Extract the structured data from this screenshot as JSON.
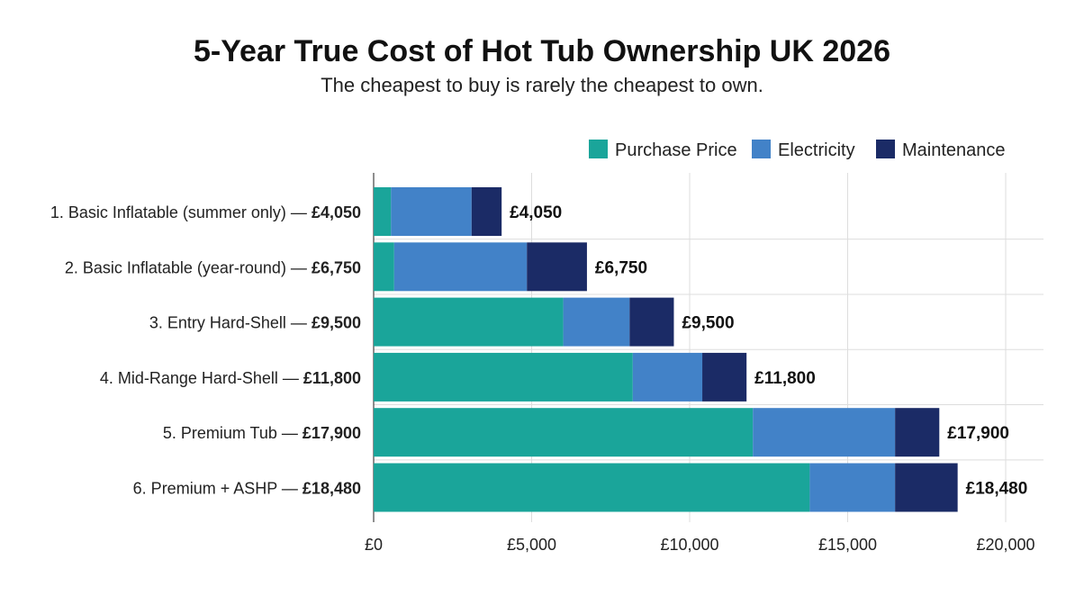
{
  "chart_data": {
    "type": "bar",
    "orientation": "horizontal",
    "stacked": true,
    "title": "5-Year True Cost of Hot Tub Ownership UK 2026",
    "subtitle": "The cheapest to buy is rarely the cheapest to own.",
    "xlabel": "",
    "ylabel": "",
    "xlim": [
      0,
      20000
    ],
    "x_ticks": [
      0,
      5000,
      10000,
      15000,
      20000
    ],
    "x_tick_labels": [
      "£0",
      "£5,000",
      "£10,000",
      "£15,000",
      "£20,000"
    ],
    "grid": true,
    "legend_position": "top-right",
    "categories": [
      {
        "name": "1. Basic Inflatable (summer only) —",
        "total_label": "£4,050"
      },
      {
        "name": "2. Basic Inflatable (year-round) —",
        "total_label": "£6,750"
      },
      {
        "name": "3. Entry Hard-Shell —",
        "total_label": "£9,500"
      },
      {
        "name": "4. Mid-Range Hard-Shell —",
        "total_label": "£11,800"
      },
      {
        "name": "5. Premium Tub —",
        "total_label": "£17,900"
      },
      {
        "name": "6. Premium + ASHP —",
        "total_label": "£18,480"
      }
    ],
    "totals": [
      4050,
      6750,
      9500,
      11800,
      17900,
      18480
    ],
    "data_labels": [
      "£4,050",
      "£6,750",
      "£9,500",
      "£11,800",
      "£17,900",
      "£18,480"
    ],
    "series": [
      {
        "name": "Purchase Price",
        "color": "#1aa59a",
        "values": [
          550,
          650,
          6000,
          8200,
          12000,
          13800
        ]
      },
      {
        "name": "Electricity",
        "color": "#4282c8",
        "values": [
          2550,
          4200,
          2100,
          2200,
          4500,
          2700
        ]
      },
      {
        "name": "Maintenance",
        "color": "#1b2b66",
        "values": [
          950,
          1900,
          1400,
          1400,
          1400,
          1980
        ]
      }
    ]
  }
}
